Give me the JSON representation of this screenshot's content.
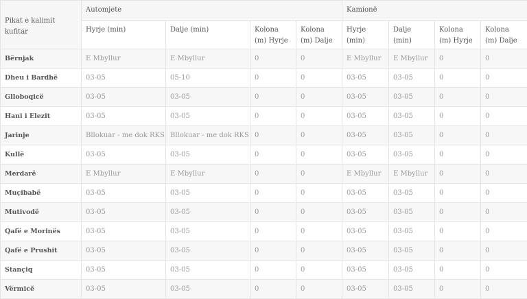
{
  "header": {
    "crossing_label": "Pikat e kalimit kufitar",
    "group_cars": "Automjete",
    "group_trucks": "Kamionë",
    "sub_columns": [
      "Hyrje (min)",
      "Dalje (min)",
      "Kolona (m) Hyrje",
      "Kolona (m) Dalje",
      "Hyrje (min)",
      "Dalje (min)",
      "Kolona (m) Hyrje",
      "Kolona (m) Dalje"
    ]
  },
  "rows": [
    [
      "Bërnjak",
      "E Mbyllur",
      "E Mbyllur",
      "0",
      "0",
      "E Mbyllur",
      "E Mbyllur",
      "0",
      "0"
    ],
    [
      "Dheu i Bardhë",
      "03-05",
      "05-10",
      "0",
      "0",
      "03-05",
      "03-05",
      "0",
      "0"
    ],
    [
      "Glloboqicë",
      "03-05",
      "03-05",
      "0",
      "0",
      "03-05",
      "03-05",
      "0",
      "0"
    ],
    [
      "Hani i Elezit",
      "03-05",
      "03-05",
      "0",
      "0",
      "03-05",
      "03-05",
      "0",
      "0"
    ],
    [
      "Jarinje",
      "Bllokuar - me dok RKS",
      "Bllokuar - me dok RKS",
      "0",
      "0",
      "03-05",
      "03-05",
      "0",
      "0"
    ],
    [
      "Kullë",
      "03-05",
      "03-05",
      "0",
      "0",
      "03-05",
      "03-05",
      "0",
      "0"
    ],
    [
      "Merdarë",
      "E Mbyllur",
      "E Mbyllur",
      "0",
      "0",
      "E Mbyllur",
      "E Mbyllur",
      "0",
      "0"
    ],
    [
      "Muçibabë",
      "03-05",
      "03-05",
      "0",
      "0",
      "03-05",
      "03-05",
      "0",
      "0"
    ],
    [
      "Mutivodë",
      "03-05",
      "03-05",
      "0",
      "0",
      "03-05",
      "03-05",
      "0",
      "0"
    ],
    [
      "Qafë e Morinës",
      "03-05",
      "03-05",
      "0",
      "0",
      "03-05",
      "03-05",
      "0",
      "0"
    ],
    [
      "Qafë e Prushit",
      "03-05",
      "03-05",
      "0",
      "0",
      "03-05",
      "03-05",
      "0",
      "0"
    ],
    [
      "Stançiq",
      "03-05",
      "03-05",
      "0",
      "0",
      "03-05",
      "03-05",
      "0",
      "0"
    ],
    [
      "Vërmicë",
      "03-05",
      "03-05",
      "0",
      "0",
      "03-05",
      "03-05",
      "0",
      "0"
    ]
  ]
}
